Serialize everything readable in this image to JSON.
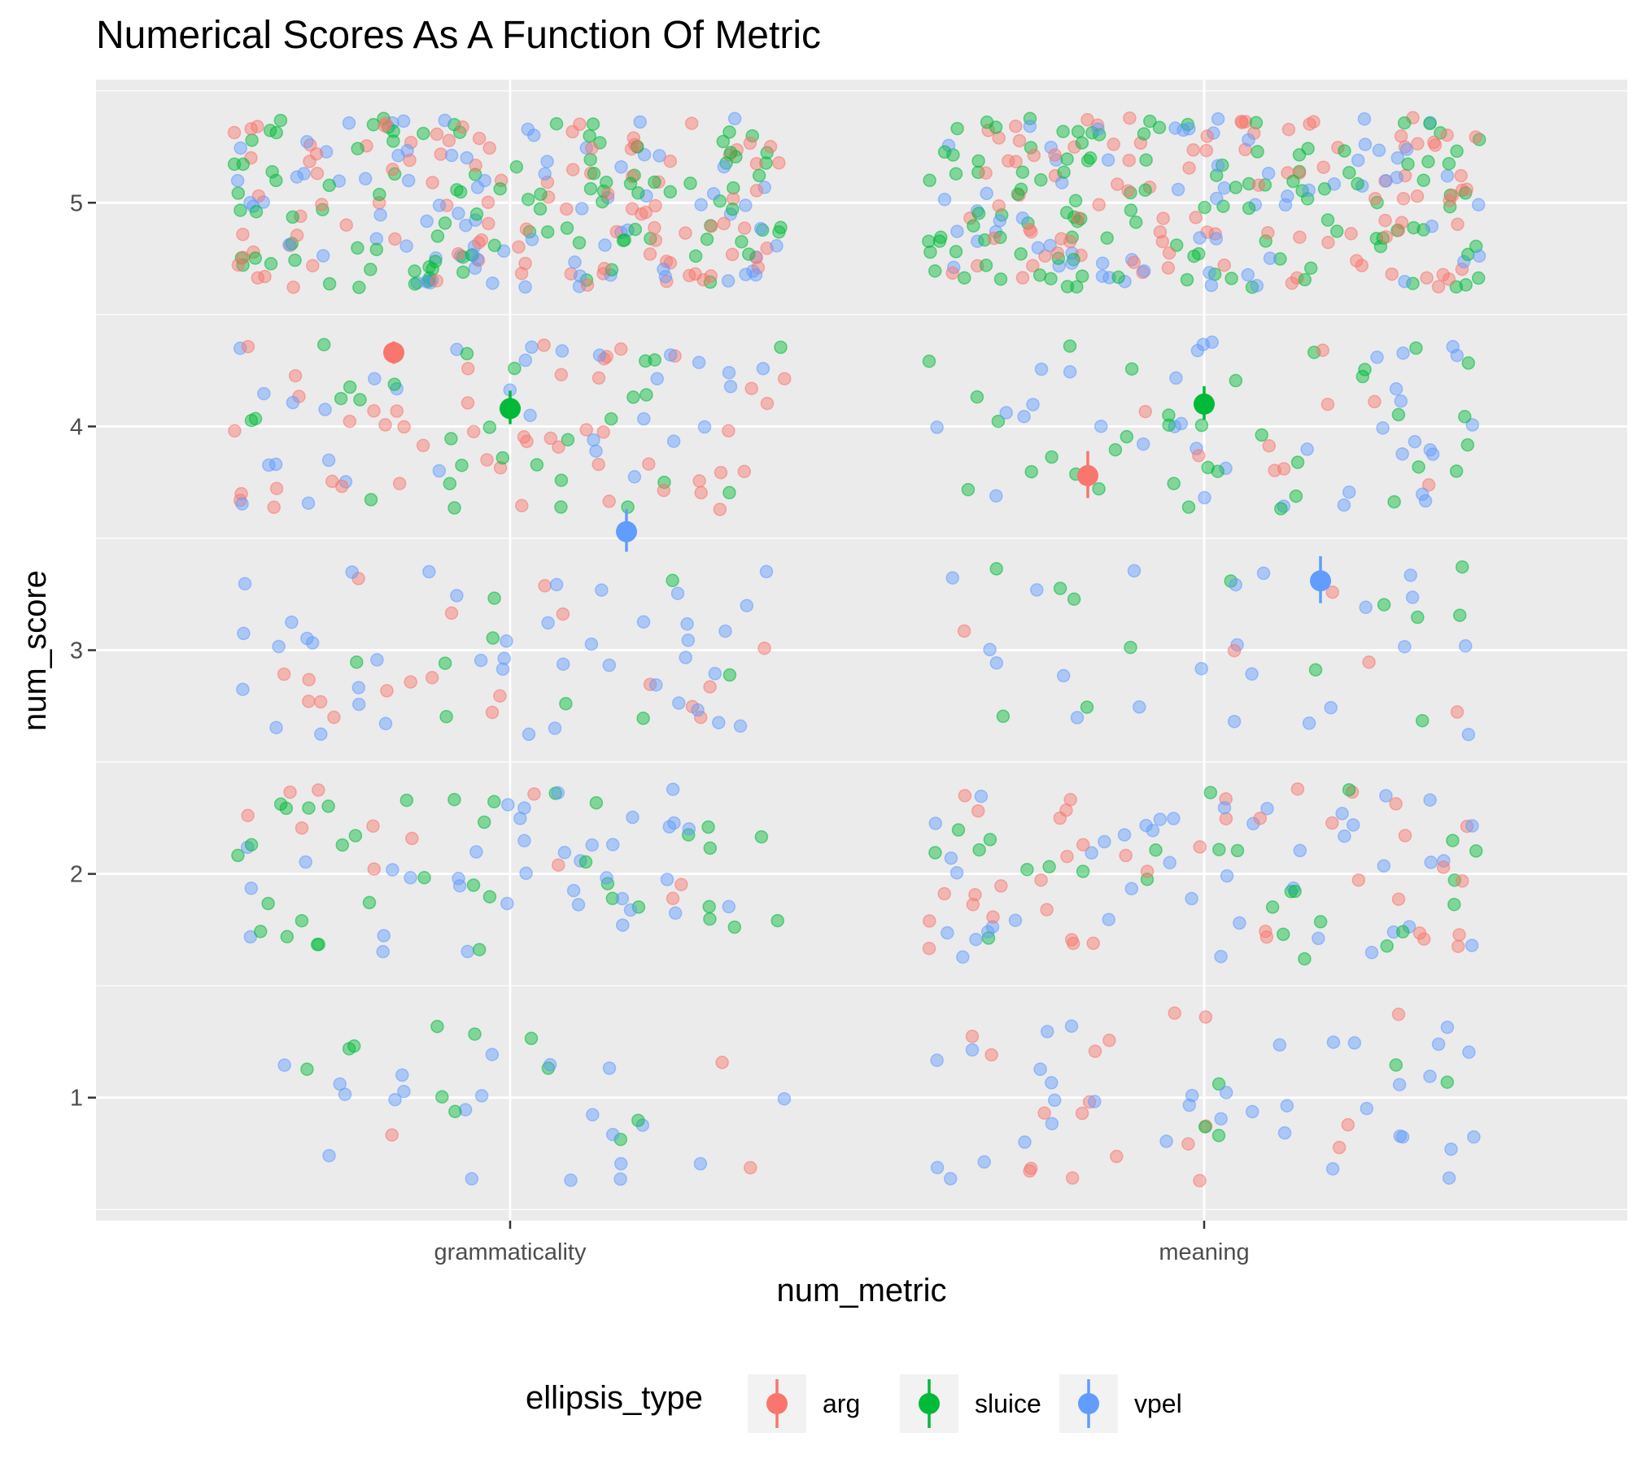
{
  "chart_data": {
    "type": "scatter",
    "title": "Numerical Scores As A Function Of Metric",
    "xlabel": "num_metric",
    "ylabel": "num_score",
    "categories": [
      "grammaticality",
      "meaning"
    ],
    "ylim": [
      0.45,
      5.55
    ],
    "y_ticks": [
      1,
      2,
      3,
      4,
      5
    ],
    "grid": true,
    "legend": {
      "title": "ellipsis_type",
      "position": "bottom",
      "entries": [
        {
          "name": "arg",
          "color": "#F8766D"
        },
        {
          "name": "sluice",
          "color": "#00BA38"
        },
        {
          "name": "vpel",
          "color": "#619CFF"
        }
      ]
    },
    "series": [
      {
        "name": "arg",
        "color": "#F8766D",
        "mean_points": [
          {
            "x": "grammaticality",
            "y": 4.33,
            "lo": 4.28,
            "hi": 4.38
          },
          {
            "x": "meaning",
            "y": 3.78,
            "lo": 3.68,
            "hi": 3.89
          }
        ]
      },
      {
        "name": "sluice",
        "color": "#00BA38",
        "mean_points": [
          {
            "x": "grammaticality",
            "y": 4.08,
            "lo": 4.01,
            "hi": 4.16
          },
          {
            "x": "meaning",
            "y": 4.1,
            "lo": 4.03,
            "hi": 4.18
          }
        ]
      },
      {
        "name": "vpel",
        "color": "#619CFF",
        "mean_points": [
          {
            "x": "grammaticality",
            "y": 3.53,
            "lo": 3.44,
            "hi": 3.63
          },
          {
            "x": "meaning",
            "y": 3.31,
            "lo": 3.21,
            "hi": 3.42
          }
        ]
      }
    ],
    "jitter_points": {
      "description_of_encoding": "raw scores 1-5 per metric and ellipsis_type, jittered horizontally and vertically",
      "approx_counts": {
        "grammaticality": {
          "5": 290,
          "4": 110,
          "3": 70,
          "2": 85,
          "1": 35
        },
        "meaning": {
          "5": 290,
          "4": 80,
          "3": 40,
          "2": 110,
          "1": 60
        }
      },
      "proportions": {
        "grammaticality": {
          "arg": {
            "5": 0.55,
            "4": 0.25,
            "3": 0.1,
            "2": 0.07,
            "1": 0.03
          },
          "sluice": {
            "5": 0.55,
            "4": 0.2,
            "3": 0.03,
            "2": 0.17,
            "1": 0.05
          },
          "vpel": {
            "5": 0.38,
            "4": 0.2,
            "3": 0.2,
            "2": 0.14,
            "1": 0.08
          }
        },
        "meaning": {
          "arg": {
            "5": 0.55,
            "4": 0.07,
            "3": 0.02,
            "2": 0.22,
            "1": 0.14
          },
          "sluice": {
            "5": 0.55,
            "4": 0.19,
            "3": 0.06,
            "2": 0.16,
            "1": 0.04
          },
          "vpel": {
            "5": 0.35,
            "4": 0.14,
            "3": 0.12,
            "2": 0.2,
            "1": 0.19
          }
        }
      }
    }
  }
}
